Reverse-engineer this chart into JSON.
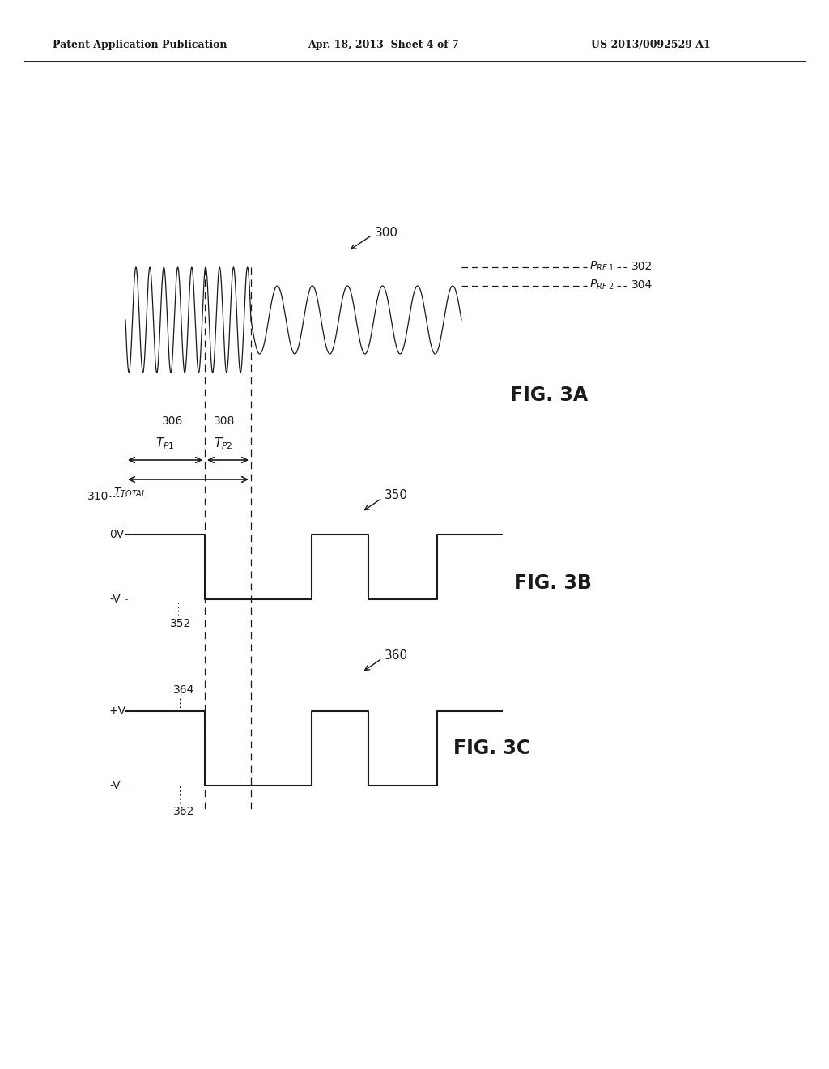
{
  "header_left": "Patent Application Publication",
  "header_mid": "Apr. 18, 2013  Sheet 4 of 7",
  "header_right": "US 2013/0092529 A1",
  "fig3a_label": "FIG. 3A",
  "fig3b_label": "FIG. 3B",
  "fig3c_label": "FIG. 3C",
  "ref_300": "300",
  "ref_302": "302",
  "ref_304": "304",
  "ref_306": "306",
  "ref_308": "308",
  "ref_310": "310",
  "ref_350": "350",
  "ref_352": "352",
  "ref_360": "360",
  "ref_362": "362",
  "ref_364": "364",
  "label_0v": "0V",
  "label_neg_v_3b": "-V",
  "label_pos_v_3c": "+V",
  "label_neg_v_3c": "-V",
  "bg_color": "#ffffff",
  "line_color": "#1a1a1a"
}
